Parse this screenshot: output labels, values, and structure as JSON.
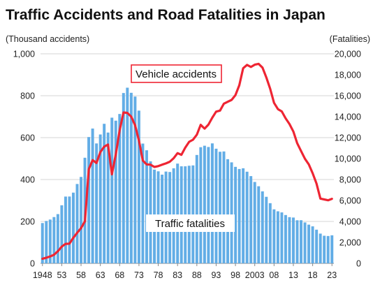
{
  "chart_data": {
    "type": "bar+line",
    "title": "Traffic Accidents and Road Fatalities in Japan",
    "left_axis_label": "(Thousand accidents)",
    "right_axis_label": "(Fatalities)",
    "left_ylim": [
      0,
      1000
    ],
    "right_ylim": [
      0,
      20000
    ],
    "left_ticks": [
      "0",
      "200",
      "400",
      "600",
      "800",
      "1,000"
    ],
    "right_ticks": [
      "0",
      "2,000",
      "4,000",
      "6,000",
      "8,000",
      "10,000",
      "12,000",
      "14,000",
      "16,000",
      "18,000",
      "20,000"
    ],
    "x_tick_labels": [
      "1948",
      "53",
      "58",
      "63",
      "68",
      "73",
      "78",
      "83",
      "88",
      "93",
      "98",
      "2003",
      "08",
      "13",
      "18",
      "23"
    ],
    "x_tick_years": [
      1948,
      1953,
      1958,
      1963,
      1968,
      1973,
      1978,
      1983,
      1988,
      1993,
      1998,
      2003,
      2008,
      2013,
      2018,
      2023
    ],
    "grid": "horizontal",
    "annotations": {
      "vehicle_accidents": "Vehicle accidents",
      "traffic_fatalities": "Traffic fatalities"
    },
    "colors": {
      "bars": "#62ade6",
      "line": "#ee2533",
      "grid": "#c8c8c8"
    },
    "start_year": 1948,
    "bar_series": {
      "axis": "right",
      "values": [
        3848,
        4045,
        4180,
        4418,
        4700,
        5544,
        6374,
        6379,
        6751,
        7575,
        8248,
        10079,
        12055,
        12865,
        11445,
        12301,
        13318,
        12484,
        13904,
        13618,
        14256,
        16257,
        16765,
        16278,
        15918,
        14574,
        11432,
        10792,
        9734,
        8945,
        8783,
        8466,
        8760,
        8719,
        9073,
        9520,
        9262,
        9261,
        9317,
        9347,
        10344,
        11086,
        11227,
        11105,
        11451,
        10942,
        10649,
        10679,
        9942,
        9640,
        9211,
        9006,
        9073,
        8747,
        8326,
        7768,
        7358,
        6871,
        6352,
        5744,
        5155,
        4968,
        4863,
        4612,
        4411,
        4373,
        4113,
        4117,
        3904,
        3694,
        3532,
        3215,
        2839,
        2636,
        2610,
        2678
      ]
    },
    "line_series": {
      "axis": "left",
      "values": [
        22,
        27,
        33,
        41,
        58,
        80,
        93,
        94,
        122,
        146,
        168,
        201,
        449,
        493,
        479,
        531,
        557,
        567,
        425,
        521,
        635,
        720,
        718,
        700,
        659,
        586,
        491,
        472,
        471,
        460,
        464,
        471,
        477,
        485,
        502,
        526,
        518,
        552,
        580,
        590,
        614,
        661,
        643,
        662,
        695,
        724,
        729,
        762,
        771,
        780,
        803,
        850,
        931,
        947,
        937,
        948,
        952,
        934,
        887,
        833,
        766,
        736,
        725,
        692,
        665,
        629,
        573,
        536,
        499,
        472,
        430,
        381,
        309,
        305,
        301,
        308
      ]
    }
  }
}
